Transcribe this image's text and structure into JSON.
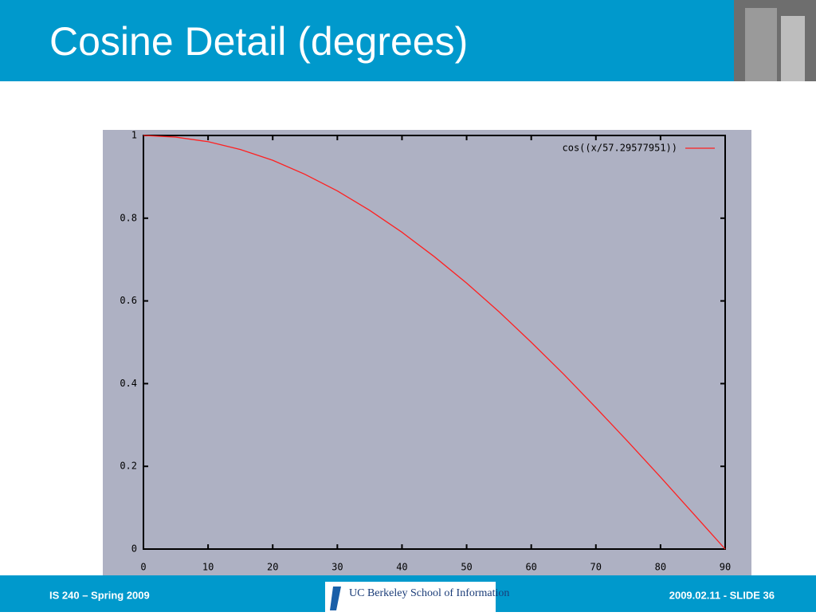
{
  "header": {
    "title": "Cosine Detail (degrees)"
  },
  "footer": {
    "left": "IS 240 – Spring 2009",
    "logo": "UC Berkeley School of Information",
    "right": "2009.02.11 - SLIDE 36"
  },
  "chart_data": {
    "type": "line",
    "x": [
      0,
      5,
      10,
      15,
      20,
      25,
      30,
      35,
      40,
      45,
      50,
      55,
      60,
      65,
      70,
      75,
      80,
      85,
      90
    ],
    "series": [
      {
        "name": "cos((x/57.29577951))",
        "color": "#ff2020",
        "values": [
          1,
          0.996,
          0.985,
          0.966,
          0.94,
          0.906,
          0.866,
          0.819,
          0.766,
          0.707,
          0.643,
          0.574,
          0.5,
          0.423,
          0.342,
          0.259,
          0.174,
          0.087,
          0
        ]
      }
    ],
    "xlim": [
      0,
      90
    ],
    "xticks": [
      0,
      10,
      20,
      30,
      40,
      50,
      60,
      70,
      80,
      90
    ],
    "ylim": [
      0,
      1
    ],
    "yticks": [
      0,
      0.2,
      0.4,
      0.6,
      0.8,
      1
    ],
    "legend": "top-right",
    "background": "#aeb1c3"
  }
}
